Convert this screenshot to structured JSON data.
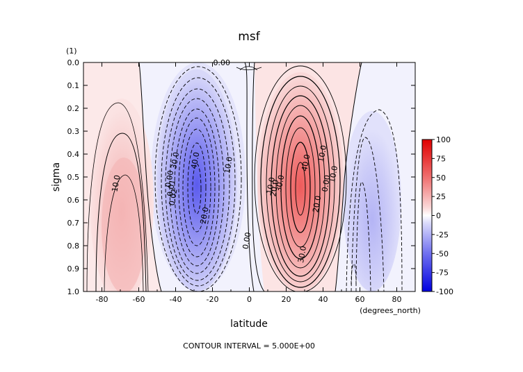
{
  "chart_data": {
    "type": "contour",
    "title": "msf",
    "xlabel": "latitude",
    "xunits": "(degrees_north)",
    "ylabel": "sigma",
    "yunits": "(1)",
    "xlim": [
      -90,
      90
    ],
    "ylim": [
      1.0,
      0.0
    ],
    "xticks": [
      -80,
      -60,
      -40,
      -20,
      0,
      20,
      40,
      60,
      80
    ],
    "yticks": [
      "0.0",
      "0.1",
      "0.2",
      "0.3",
      "0.4",
      "0.5",
      "0.6",
      "0.7",
      "0.8",
      "0.9",
      "1.0"
    ],
    "colorbar": {
      "min": -100,
      "max": 100,
      "labels": [
        "100",
        "75",
        "50",
        "25",
        "0",
        "-25",
        "-50",
        "-75",
        "-100"
      ],
      "colors": {
        "positive": "#e00000",
        "negative": "#0000e0",
        "zero": "#ffffff"
      }
    },
    "contour_interval_text": "CONTOUR INTERVAL = 5.000E+00",
    "contour_labels": [
      {
        "text": "0.00",
        "lat": -15,
        "sigma": 0.0
      },
      {
        "text": "10.0",
        "lat": -71,
        "sigma": 0.53
      },
      {
        "text": "0.00",
        "lat": -42,
        "sigma": 0.51
      },
      {
        "text": "0.01",
        "lat": -41,
        "sigma": 0.55
      },
      {
        "text": "0.02",
        "lat": -40,
        "sigma": 0.59
      },
      {
        "text": "30.0",
        "lat": -39,
        "sigma": 0.43
      },
      {
        "text": "40.0",
        "lat": -28,
        "sigma": 0.43
      },
      {
        "text": "20.0",
        "lat": -23,
        "sigma": 0.67
      },
      {
        "text": "10.0",
        "lat": -10,
        "sigma": 0.45
      },
      {
        "text": "0.00",
        "lat": 0,
        "sigma": 0.78
      },
      {
        "text": "10.0",
        "lat": 13,
        "sigma": 0.54
      },
      {
        "text": "20.0",
        "lat": 15,
        "sigma": 0.55
      },
      {
        "text": "30.0",
        "lat": 18,
        "sigma": 0.53
      },
      {
        "text": "40.0",
        "lat": 32,
        "sigma": 0.44
      },
      {
        "text": "20.0",
        "lat": 38,
        "sigma": 0.62
      },
      {
        "text": "30.0",
        "lat": 30,
        "sigma": 0.84
      },
      {
        "text": "10.0",
        "lat": 41,
        "sigma": 0.4
      },
      {
        "text": "0.00",
        "lat": 43,
        "sigma": 0.53
      },
      {
        "text": "10.0",
        "lat": 47,
        "sigma": 0.49
      }
    ],
    "cells": [
      {
        "name": "south-polar-cell",
        "sign": "positive",
        "center_lat": -66,
        "center_sigma": 0.55,
        "peak": 15
      },
      {
        "name": "south-hadley-cell",
        "sign": "negative",
        "center_lat": -28,
        "center_sigma": 0.52,
        "peak": -45
      },
      {
        "name": "north-hadley-cell",
        "sign": "positive",
        "center_lat": 29,
        "center_sigma": 0.55,
        "peak": 45
      },
      {
        "name": "north-ferrel-cell",
        "sign": "negative",
        "center_lat": 64,
        "center_sigma": 0.62,
        "peak": -20
      }
    ]
  }
}
